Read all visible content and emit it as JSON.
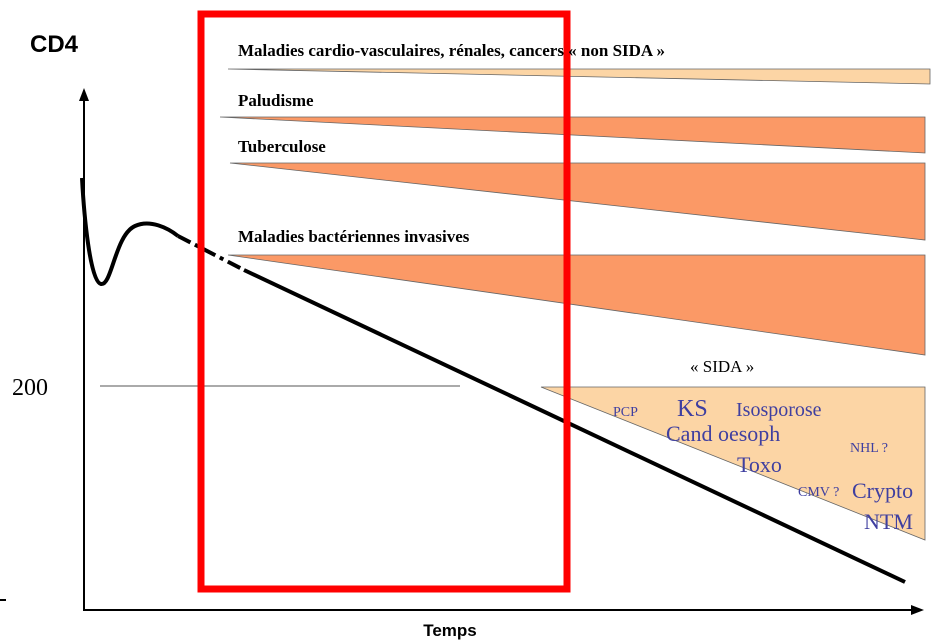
{
  "axes": {
    "y_label": "CD4",
    "x_label": "Temps",
    "threshold_label": "200"
  },
  "bands": [
    {
      "label": "Maladies cardio-vasculaires, rénales, cancers « non SIDA »",
      "color": "#fcd5a5"
    },
    {
      "label": "Paludisme",
      "color": "#fb9966"
    },
    {
      "label": "Tuberculose",
      "color": "#fb9966"
    },
    {
      "label": "Maladies bactériennes invasives",
      "color": "#fb9966"
    }
  ],
  "sida": {
    "label": "« SIDA »",
    "color": "#fcd5a5",
    "infections": [
      "PCP",
      "KS",
      "Isosporose",
      "Cand oesoph",
      "NHL ?",
      "Toxo",
      "CMV ?",
      "Crypto",
      "NTM"
    ]
  },
  "highlight": {
    "color": "#ff0000"
  }
}
